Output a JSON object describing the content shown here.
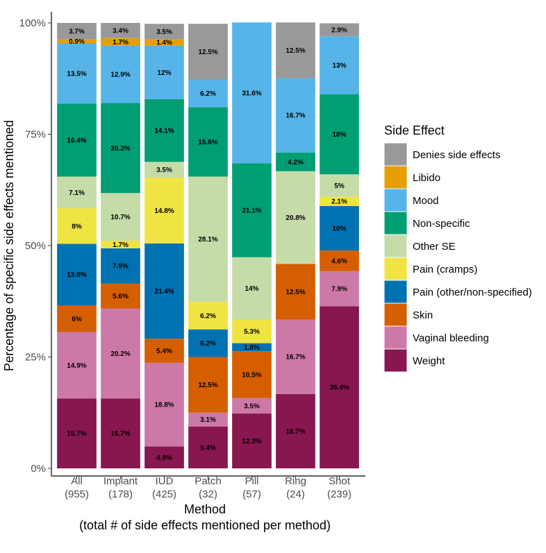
{
  "chart_data": {
    "type": "bar",
    "stacked": true,
    "title": "",
    "ylabel": "Percentage of specific side effects mentioned",
    "xlabel": "Method",
    "xlabel_sub": "(total # of side effects mentioned per method)",
    "ylim": [
      0,
      100
    ],
    "yticks": [
      "0%",
      "25%",
      "50%",
      "75%",
      "100%"
    ],
    "categories": [
      {
        "name": "All",
        "count": "(955)"
      },
      {
        "name": "Implant",
        "count": "(178)"
      },
      {
        "name": "IUD",
        "count": "(425)"
      },
      {
        "name": "Patch",
        "count": "(32)"
      },
      {
        "name": "Pill",
        "count": "(57)"
      },
      {
        "name": "Ring",
        "count": "(24)"
      },
      {
        "name": "Shot",
        "count": "(239)"
      }
    ],
    "legend_title": "Side Effect",
    "series": [
      {
        "name": "Weight",
        "color": "#88164f",
        "values": [
          15.7,
          15.7,
          4.9,
          9.4,
          12.3,
          16.7,
          36.4
        ],
        "labels": [
          "15.7%",
          "15.7%",
          "4.9%",
          "9.4%",
          "12.3%",
          "16.7%",
          "36.4%"
        ]
      },
      {
        "name": "Vaginal bleeding",
        "color": "#cc79a7",
        "values": [
          14.9,
          20.2,
          18.8,
          3.1,
          3.5,
          16.7,
          7.9
        ],
        "labels": [
          "14.9%",
          "20.2%",
          "18.8%",
          "3.1%",
          "3.5%",
          "16.7%",
          "7.9%"
        ]
      },
      {
        "name": "Skin",
        "color": "#d55e00",
        "values": [
          6,
          5.6,
          5.4,
          12.5,
          10.5,
          12.5,
          4.6
        ],
        "labels": [
          "6%",
          "5.6%",
          "5.4%",
          "12.5%",
          "10.5%",
          "12.5%",
          "4.6%"
        ]
      },
      {
        "name": "Pain (other/non-specified)",
        "color": "#0072b2",
        "values": [
          13.8,
          7.9,
          21.4,
          6.2,
          1.8,
          0,
          10
        ],
        "labels": [
          "13.8%",
          "7.9%",
          "21.4%",
          "6.2%",
          "1.8%",
          "",
          "10%"
        ]
      },
      {
        "name": "Pain (cramps)",
        "color": "#f0e442",
        "values": [
          8,
          1.7,
          14.8,
          6.2,
          5.3,
          0,
          2.1
        ],
        "labels": [
          "8%",
          "1.7%",
          "14.8%",
          "6.2%",
          "5.3%",
          "",
          "2.1%"
        ]
      },
      {
        "name": "Other SE",
        "color": "#c5dba8",
        "values": [
          7.1,
          10.7,
          3.5,
          28.1,
          14,
          20.8,
          5
        ],
        "labels": [
          "7.1%",
          "10.7%",
          "3.5%",
          "28.1%",
          "14%",
          "20.8%",
          "5%"
        ]
      },
      {
        "name": "Non-specific",
        "color": "#009e73",
        "values": [
          16.4,
          20.2,
          14.1,
          15.6,
          21.1,
          4.2,
          18
        ],
        "labels": [
          "16.4%",
          "20.2%",
          "14.1%",
          "15.6%",
          "21.1%",
          "4.2%",
          "18%"
        ]
      },
      {
        "name": "Mood",
        "color": "#56b4e9",
        "values": [
          13.5,
          12.9,
          12,
          6.2,
          31.6,
          16.7,
          13
        ],
        "labels": [
          "13.5%",
          "12.9%",
          "12%",
          "6.2%",
          "31.6%",
          "16.7%",
          "13%"
        ]
      },
      {
        "name": "Libido",
        "color": "#e69f00",
        "values": [
          0.9,
          1.7,
          1.4,
          0,
          0,
          0,
          0
        ],
        "labels": [
          "0.9%",
          "1.7%",
          "1.4%",
          "",
          "",
          "",
          ""
        ]
      },
      {
        "name": "Denies side effects",
        "color": "#999999",
        "values": [
          3.7,
          3.4,
          3.5,
          12.5,
          0,
          12.5,
          2.9
        ],
        "labels": [
          "3.7%",
          "3.4%",
          "3.5%",
          "12.5%",
          "",
          "12.5%",
          "2.9%"
        ]
      }
    ],
    "legend_order": [
      "Denies side effects",
      "Libido",
      "Mood",
      "Non-specific",
      "Other SE",
      "Pain (cramps)",
      "Pain (other/non-specified)",
      "Skin",
      "Vaginal bleeding",
      "Weight"
    ]
  }
}
